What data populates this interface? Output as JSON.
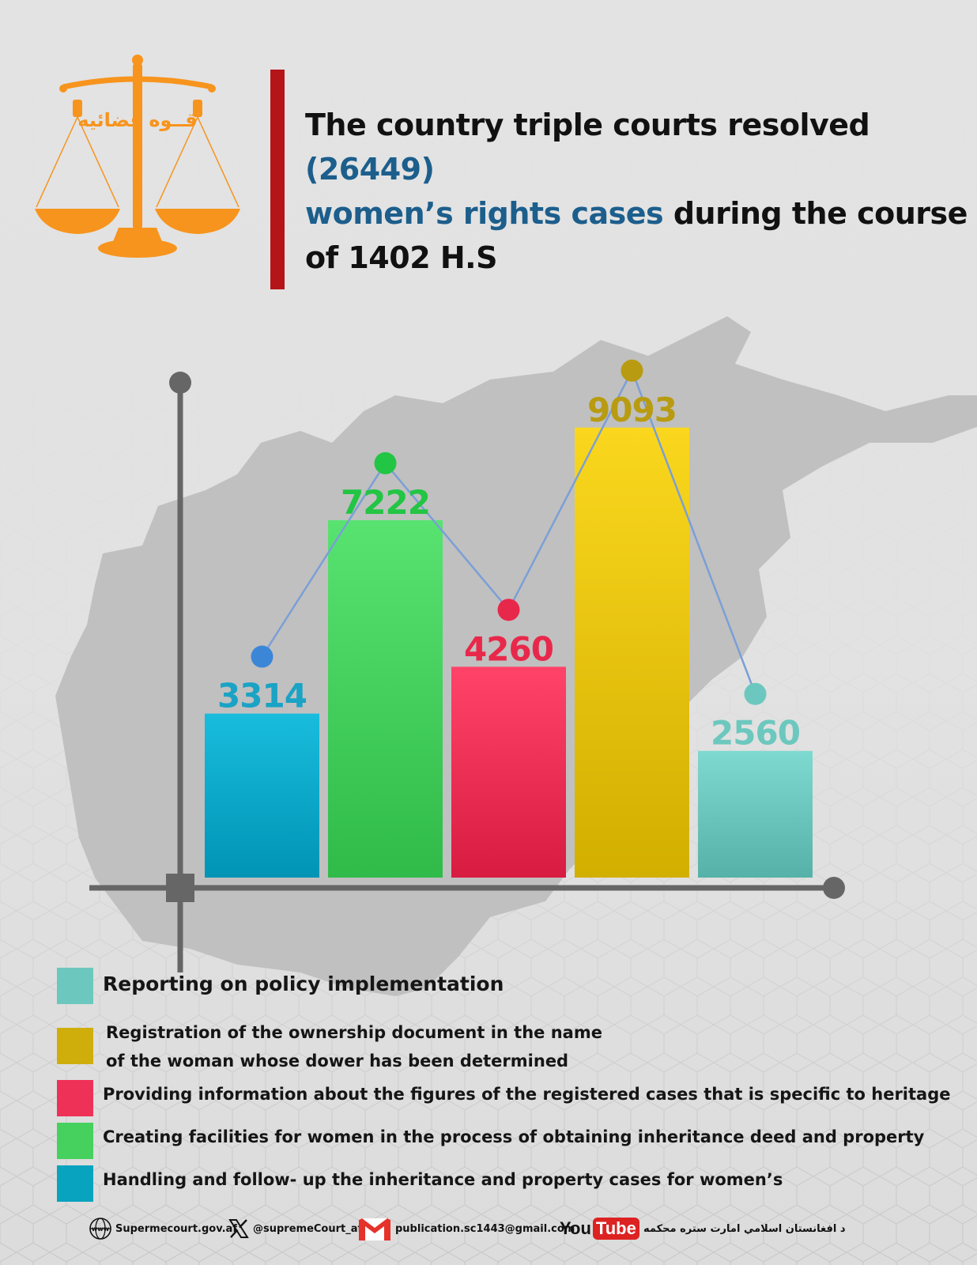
{
  "header": {
    "logo_text": "قــوه قضائیه",
    "title_part1": "The country triple courts resolved ",
    "title_highlight1": "(26449)",
    "title_highlight2": "women’s rights cases",
    "title_part2": " during the course of 1402 H.S",
    "accent_color": "#1c5e8c",
    "bar_color": "#b51419",
    "logo_color": "#f7941d"
  },
  "chart_data": {
    "type": "bar",
    "title": "",
    "xlabel": "",
    "ylabel": "",
    "ylim": [
      0,
      10000
    ],
    "grid": false,
    "legend_placement": "bottom",
    "categories": [
      "Handling and follow- up the inheritance and property cases for women’s",
      "Creating facilities for women in the process of obtaining inheritance deed and property",
      "Providing information about the figures of the registered cases that is specific to heritage",
      "Registration of the ownership document in the name of the woman whose dower has been determined",
      "Reporting on policy implementation"
    ],
    "values": [
      3314,
      7222,
      4260,
      9093,
      2560
    ],
    "value_labels": [
      "3314",
      "7222",
      "4260",
      "9093",
      "2560"
    ],
    "colors": [
      "#07aacb",
      "#46d15f",
      "#ee3157",
      "#e8c50c",
      "#6cc8be"
    ],
    "label_colors": [
      "#1aa3c5",
      "#22c544",
      "#e8284b",
      "#b89b10",
      "#6cc8be"
    ]
  },
  "legend": [
    {
      "lines": [
        "Reporting on policy implementation"
      ],
      "color": "#6cc8be"
    },
    {
      "lines": [
        "Registration of the ownership document in the name",
        "of the woman whose dower has been determined"
      ],
      "color": "#cfae0c"
    },
    {
      "lines": [
        "Providing information about the figures of the registered cases that is specific to heritage"
      ],
      "color": "#ee3157"
    },
    {
      "lines": [
        "Creating facilities for women in the process of obtaining inheritance deed and property"
      ],
      "color": "#46d15f"
    },
    {
      "lines": [
        "Handling and follow- up the inheritance and property cases for women’s"
      ],
      "color": "#08a3bf"
    }
  ],
  "footer": {
    "website": "Supermecourt.gov.af",
    "website_icon": "globe-www-icon",
    "twitter": "@supremeCourt_af",
    "twitter_icon": "x-logo-icon",
    "email": "publication.sc1443@gmail.com",
    "email_icon": "gmail-icon",
    "youtube_you": "You",
    "youtube_tube": "Tube",
    "youtube_icon": "youtube-icon",
    "pashto": "د افغانستان اسلامي امارت ستره محکمه"
  }
}
